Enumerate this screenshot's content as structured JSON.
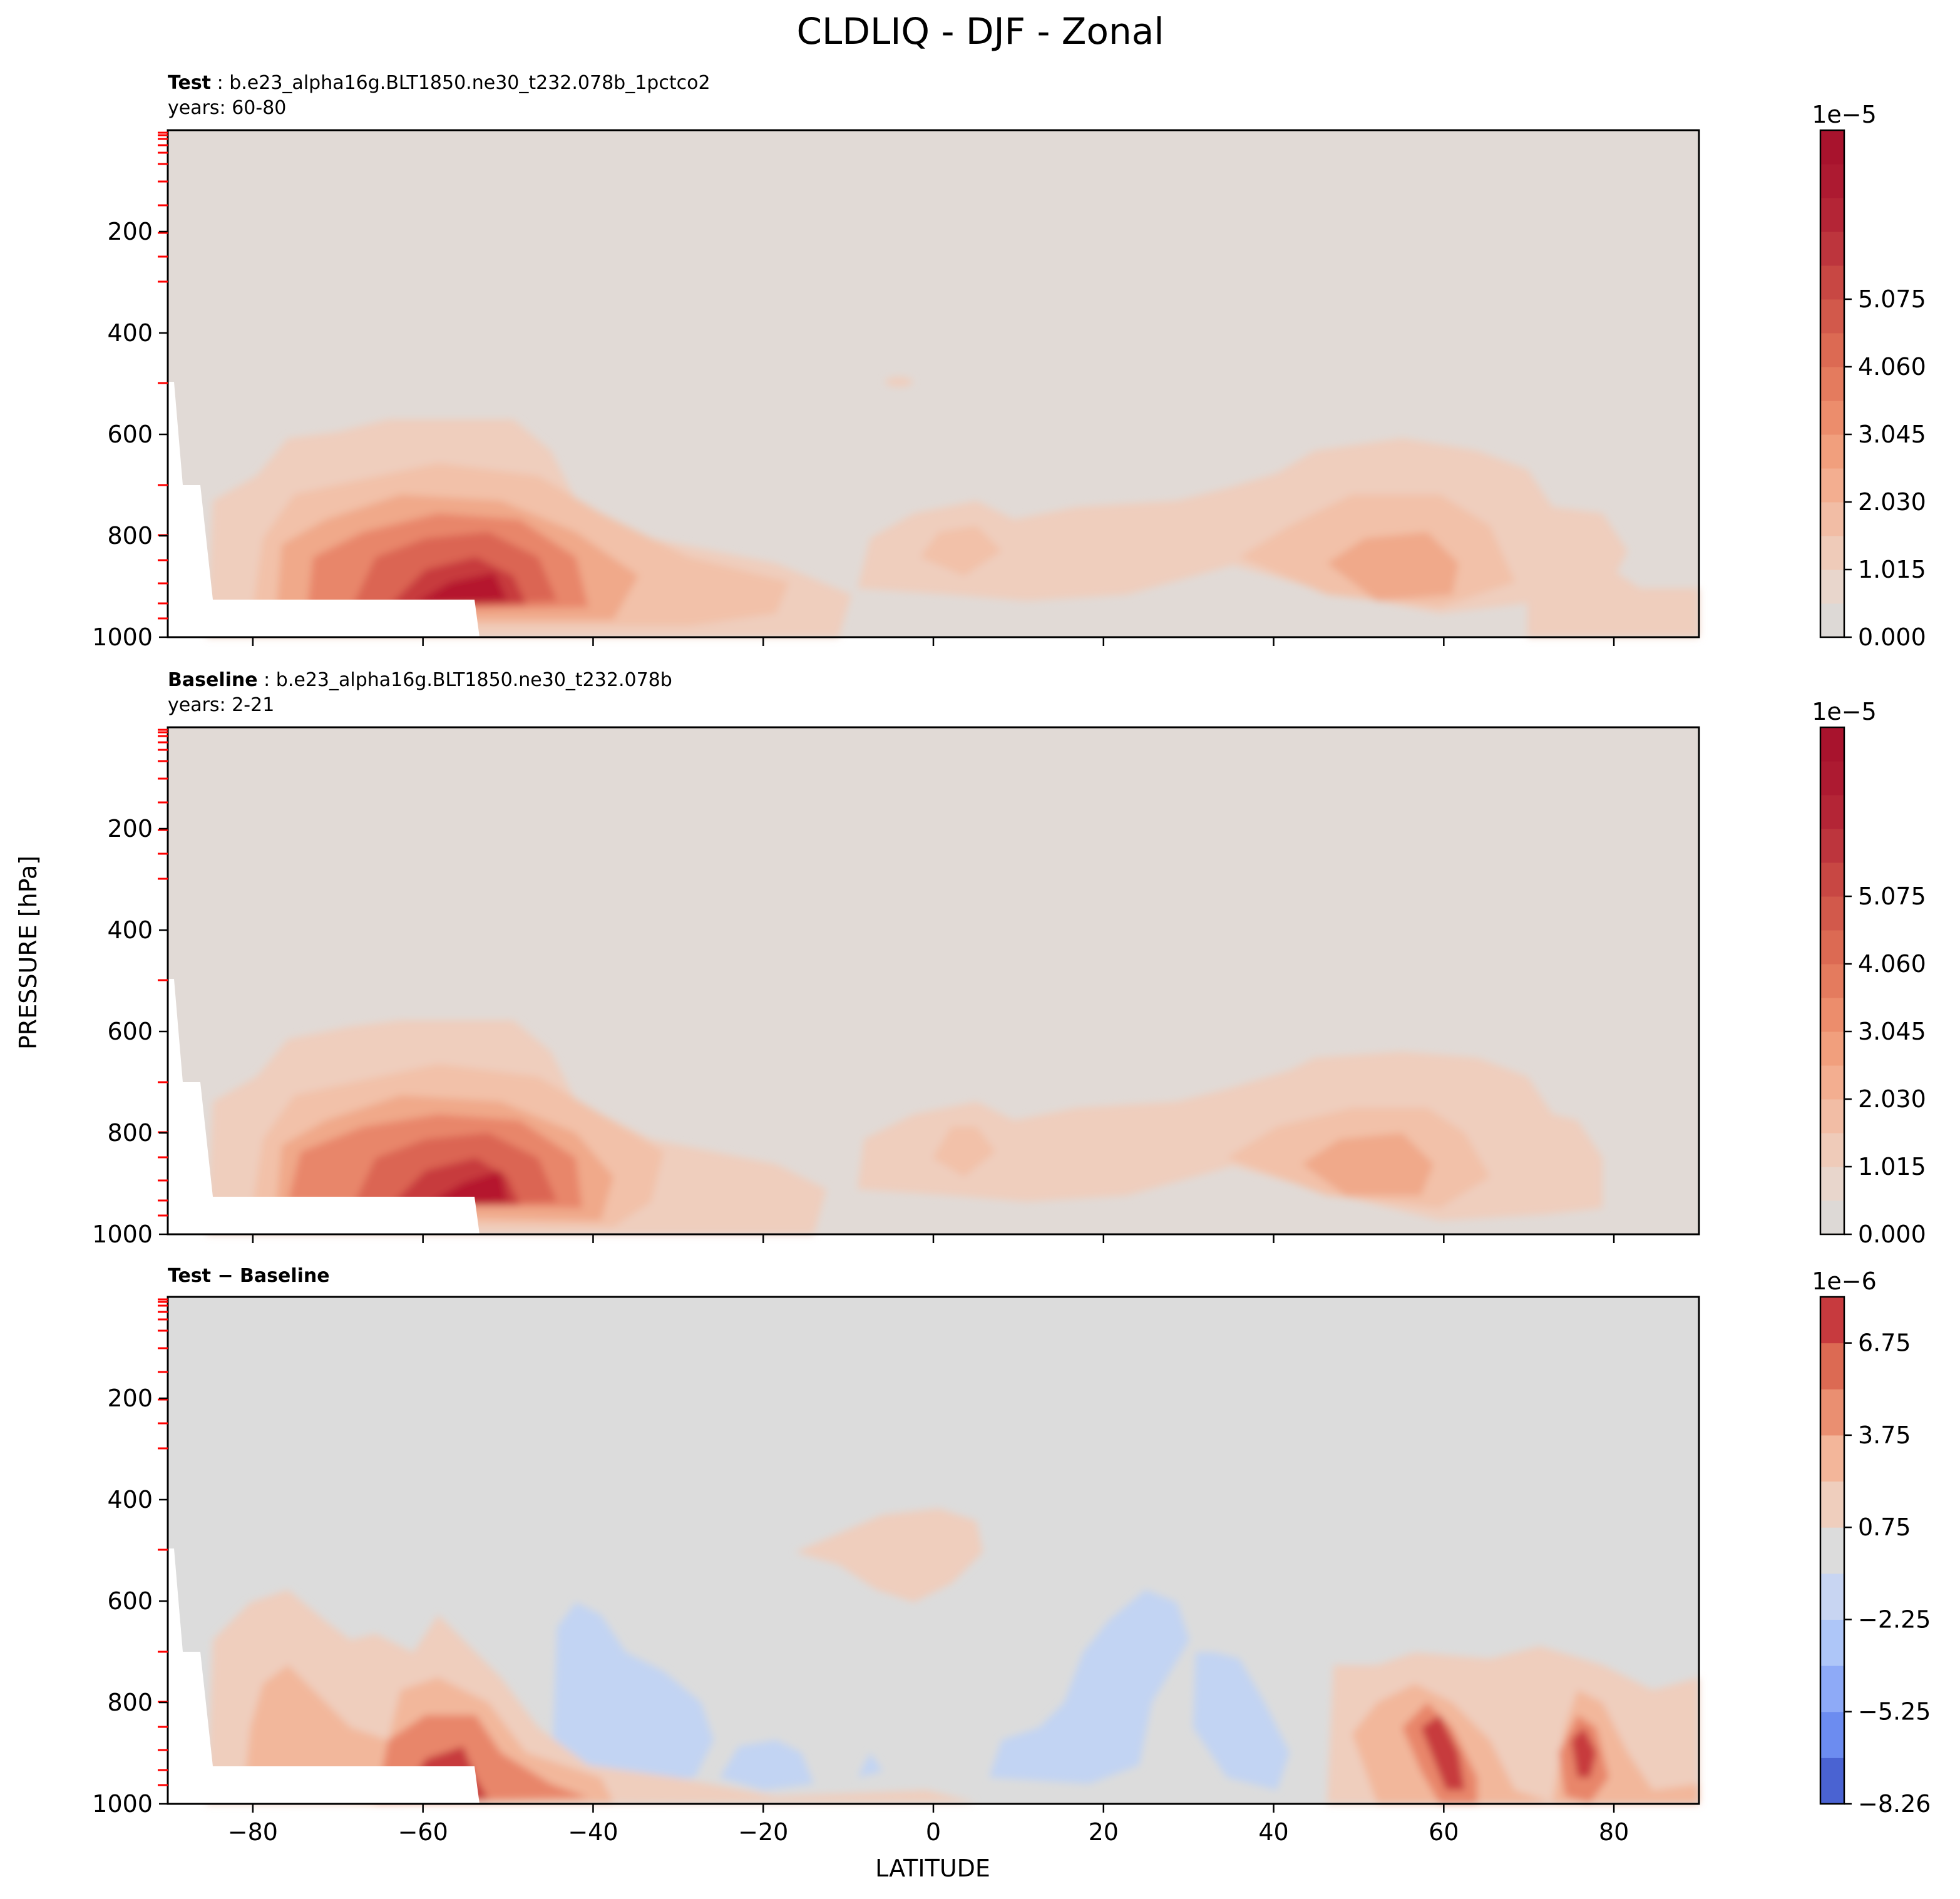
{
  "title": "CLDLIQ - DJF - Zonal",
  "ylabel_shared": "PRESSURE [hPa]",
  "xlabel": "LATITUDE",
  "chart_data": [
    {
      "type": "contourf",
      "panel": "test",
      "title_bold": "Test",
      "title_rest": ": b.e23_alpha16g.BLT1850.ne30_t232.078b_1pctco2",
      "subtitle": "years: 60-80",
      "x_range": [
        -90,
        90
      ],
      "x_ticks": [
        -80,
        -60,
        -40,
        -20,
        0,
        20,
        40,
        60,
        80
      ],
      "y_range": [
        1000,
        0
      ],
      "y_ticks": [
        200,
        400,
        600,
        800,
        1000
      ],
      "colorbar_exponent": "1e−5",
      "colorbar_ticks": [
        "0.000",
        "1.015",
        "2.030",
        "3.045",
        "4.060",
        "5.075"
      ],
      "colorbar_levels": 15,
      "features": [
        {
          "name": "southern-max",
          "lat": -55,
          "p": 890,
          "peak": 5.4e-05
        },
        {
          "name": "equatorial",
          "lat": 2,
          "p": 860,
          "peak": 1e-05
        },
        {
          "name": "northern-max",
          "lat": 55,
          "p": 880,
          "peak": 2.6e-05
        }
      ]
    },
    {
      "type": "contourf",
      "panel": "baseline",
      "title_bold": "Baseline",
      "title_rest": ": b.e23_alpha16g.BLT1850.ne30_t232.078b",
      "subtitle": "years: 2-21",
      "x_range": [
        -90,
        90
      ],
      "x_ticks": [
        -80,
        -60,
        -40,
        -20,
        0,
        20,
        40,
        60,
        80
      ],
      "y_range": [
        1000,
        0
      ],
      "y_ticks": [
        200,
        400,
        600,
        800,
        1000
      ],
      "colorbar_exponent": "1e−5",
      "colorbar_ticks": [
        "0.000",
        "1.015",
        "2.030",
        "3.045",
        "4.060",
        "5.075"
      ],
      "colorbar_levels": 15,
      "features": [
        {
          "name": "southern-max",
          "lat": -53,
          "p": 880,
          "peak": 5.2e-05
        },
        {
          "name": "equatorial",
          "lat": 2,
          "p": 860,
          "peak": 1e-05
        },
        {
          "name": "northern-max",
          "lat": 50,
          "p": 860,
          "peak": 2.3e-05
        }
      ]
    },
    {
      "type": "contourf",
      "panel": "difference",
      "title_bold": "Test − Baseline",
      "x_range": [
        -90,
        90
      ],
      "x_ticks": [
        -80,
        -60,
        -40,
        -20,
        0,
        20,
        40,
        60,
        80
      ],
      "y_range": [
        1000,
        0
      ],
      "y_ticks": [
        200,
        400,
        600,
        800,
        1000
      ],
      "colorbar_exponent": "1e−6",
      "colorbar_ticks": [
        "−8.26",
        "−5.25",
        "−2.25",
        "0.75",
        "3.75",
        "6.75"
      ],
      "colorbar_levels": 11,
      "features": [
        {
          "name": "southern-increase",
          "lat": -57,
          "p": 880,
          "peak": 8e-06
        },
        {
          "name": "tropical-increase",
          "lat": -2,
          "p": 490,
          "peak": 1.5e-06
        },
        {
          "name": "southern-decrease",
          "lat": -35,
          "p": 780,
          "peak": -1.5e-06
        },
        {
          "name": "northern-decrease",
          "lat": 22,
          "p": 760,
          "peak": -1.5e-06
        },
        {
          "name": "northern-increase",
          "lat": 60,
          "p": 900,
          "peak": 7e-06
        },
        {
          "name": "polar-increase",
          "lat": 76,
          "p": 880,
          "peak": 6e-06
        }
      ]
    }
  ]
}
